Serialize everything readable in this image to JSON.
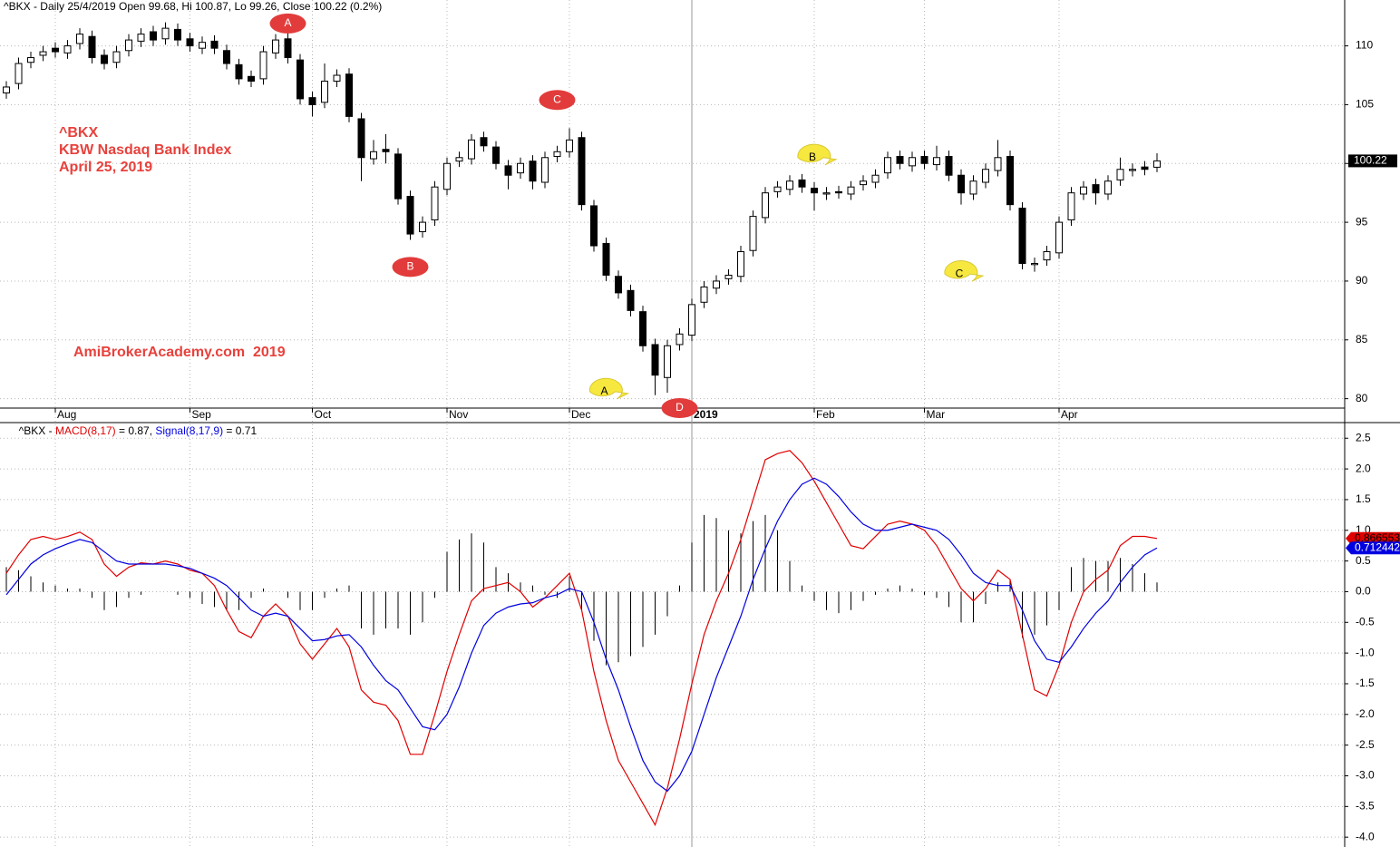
{
  "chart_data": [
    {
      "type": "candlestick",
      "title": "^BKX - Daily 25/4/2019 Open 99.68, Hi 100.87, Lo 99.26, Close 100.22 (0.2%)",
      "notes": [
        "^BKX",
        "KBW Nasdaq Bank Index",
        "April 25, 2019"
      ],
      "watermark": "AmiBrokerAcademy.com  2019",
      "categories": [
        null,
        null,
        null,
        null,
        "Aug",
        null,
        null,
        null,
        null,
        null,
        null,
        null,
        null,
        null,
        null,
        "Sep",
        null,
        null,
        null,
        null,
        null,
        null,
        null,
        null,
        null,
        "Oct",
        null,
        null,
        null,
        null,
        null,
        null,
        null,
        null,
        null,
        null,
        "Nov",
        null,
        null,
        null,
        null,
        null,
        null,
        null,
        null,
        null,
        "Dec",
        null,
        null,
        null,
        null,
        null,
        null,
        null,
        null,
        null,
        "2019",
        null,
        null,
        null,
        null,
        null,
        null,
        null,
        null,
        null,
        "Feb",
        null,
        null,
        null,
        null,
        null,
        null,
        null,
        null,
        "Mar",
        null,
        null,
        null,
        null,
        null,
        null,
        null,
        null,
        null,
        null,
        "Apr",
        null,
        null,
        null,
        null,
        null,
        null,
        null,
        null
      ],
      "year_category": "2019",
      "open": [
        106,
        106.8,
        108.6,
        109.2,
        109.8,
        109.4,
        110.2,
        110.8,
        109.2,
        108.6,
        109.6,
        110.4,
        111.2,
        110.6,
        111.4,
        110.6,
        109.8,
        110.4,
        109.6,
        108.4,
        107.4,
        107.2,
        109.4,
        110.6,
        108.8,
        105.6,
        105.2,
        107,
        107.6,
        103.8,
        100.4,
        101.2,
        100.8,
        97.2,
        94.2,
        95.2,
        97.8,
        100.2,
        100.4,
        102.2,
        101.4,
        99.8,
        99.2,
        100.2,
        98.4,
        100.6,
        101,
        102.2,
        96.4,
        93.2,
        90.4,
        89.2,
        87.4,
        84.6,
        81.8,
        84.6,
        85.4,
        88.2,
        89.4,
        90.2,
        90.4,
        92.6,
        95.4,
        97.6,
        97.8,
        98.6,
        97.9,
        97.4,
        97.6,
        97.4,
        98.2,
        98.4,
        99.2,
        100.6,
        99.8,
        100.6,
        99.9,
        100.6,
        99,
        97.4,
        98.4,
        99.4,
        100.6,
        96.2,
        91.4,
        91.8,
        92.4,
        95.2,
        97.4,
        98.2,
        97.4,
        98.6,
        99.4,
        99.7,
        99.68
      ],
      "high": [
        107,
        109,
        109.5,
        110,
        110.3,
        110.5,
        111.5,
        111.3,
        109.7,
        110,
        111,
        111.5,
        111.7,
        112,
        111.9,
        111.1,
        110.8,
        110.9,
        110.1,
        108.9,
        107.9,
        110,
        111,
        111.1,
        109.3,
        106.1,
        108.5,
        108,
        108.1,
        104.3,
        102,
        102.5,
        101.3,
        97.7,
        95.5,
        98.5,
        100.5,
        101,
        102.5,
        102.7,
        101.9,
        100.3,
        100.5,
        100.7,
        101,
        101.5,
        103,
        102.7,
        96.9,
        93.7,
        90.9,
        89.7,
        87.9,
        85.1,
        85,
        86,
        88.5,
        90,
        90.5,
        91,
        93,
        96,
        98,
        98.5,
        99,
        99.1,
        98.4,
        98,
        98.1,
        98.5,
        99,
        99.5,
        101,
        101.1,
        101,
        101.1,
        101.5,
        101.1,
        99.5,
        99,
        100,
        102,
        101.1,
        96.7,
        92,
        93,
        95.5,
        98,
        98.5,
        98.7,
        99,
        100.5,
        100,
        100.2,
        100.87
      ],
      "low": [
        105.5,
        106.3,
        108.1,
        108.7,
        109,
        108.9,
        109.7,
        108.5,
        108,
        108.1,
        109.1,
        109.9,
        110,
        110.1,
        110,
        109.5,
        109.3,
        109.3,
        108,
        106.7,
        106.5,
        106.7,
        108.9,
        108.5,
        105,
        104,
        104.7,
        106.5,
        103.5,
        98.5,
        99.9,
        100,
        96.5,
        93.5,
        93.7,
        94.7,
        97.3,
        99.7,
        99.9,
        101,
        99.5,
        97.8,
        98.7,
        97.8,
        97.9,
        100.1,
        100.5,
        96,
        92.5,
        90,
        88.5,
        87,
        84,
        80.3,
        80.5,
        84.1,
        84.9,
        87.7,
        88.9,
        89.7,
        89.9,
        92.1,
        94.9,
        97.1,
        97.3,
        97.5,
        96,
        96.9,
        97,
        96.9,
        97.7,
        97.9,
        98.7,
        99.5,
        99.3,
        99.5,
        99.4,
        98.5,
        96.5,
        96.9,
        97.9,
        98.9,
        96,
        91,
        90.8,
        91.3,
        91.9,
        94.7,
        96.9,
        96.5,
        96.9,
        98.1,
        98.9,
        99,
        99.26
      ],
      "close": [
        106.5,
        108.5,
        109,
        109.5,
        109.5,
        110,
        111,
        109,
        108.5,
        109.5,
        110.5,
        111,
        110.5,
        111.5,
        110.5,
        110,
        110.3,
        109.8,
        108.5,
        107.2,
        107,
        109.5,
        110.5,
        109,
        105.5,
        105,
        107,
        107.5,
        104,
        100.5,
        101,
        101,
        97,
        94,
        95,
        98,
        100,
        100.5,
        102,
        101.5,
        100,
        99,
        100,
        98.5,
        100.5,
        101,
        102,
        96.5,
        93,
        90.5,
        89,
        87.5,
        84.5,
        82,
        84.5,
        85.5,
        88,
        89.5,
        90,
        90.5,
        92.5,
        95.5,
        97.5,
        98,
        98.5,
        98,
        97.5,
        97.5,
        97.5,
        98,
        98.5,
        99,
        100.5,
        100,
        100.5,
        100,
        100.5,
        99,
        97.5,
        98.5,
        99.5,
        100.5,
        96.5,
        91.5,
        91.5,
        92.5,
        95,
        97.5,
        98,
        97.5,
        98.5,
        99.5,
        99.5,
        99.5,
        100.22
      ],
      "up_color": "#ffffff",
      "down_color": "#000000",
      "ylim": [
        79.2,
        113.9
      ],
      "yticks": [
        80,
        85,
        90,
        95,
        100,
        105,
        110
      ],
      "grid": true,
      "annotations": [
        {
          "text": "A",
          "color": "#e23b3b",
          "shape": "bubble",
          "x": 23,
          "y": 111.9
        },
        {
          "text": "B",
          "color": "#e23b3b",
          "shape": "bubble",
          "x": 33,
          "y": 91.2
        },
        {
          "text": "C",
          "color": "#e23b3b",
          "shape": "bubble",
          "x": 45,
          "y": 105.4
        },
        {
          "text": "D",
          "color": "#e23b3b",
          "shape": "bubble",
          "x": 55,
          "y": 79.2
        },
        {
          "text": "A",
          "color": "#f7e840",
          "shape": "callout",
          "x": 49,
          "y": 80.6
        },
        {
          "text": "B",
          "color": "#f7e840",
          "shape": "callout",
          "x": 66,
          "y": 100.5
        },
        {
          "text": "C",
          "color": "#f7e840",
          "shape": "callout",
          "x": 78,
          "y": 90.6
        }
      ]
    },
    {
      "type": "macd",
      "header_prefix": "^BKX - ",
      "header_macd": " = 0.87, ",
      "header_signal": " = 0.71",
      "series": [
        {
          "name": "MACD(8,17)",
          "color": "#e00000",
          "values": [
            0.3,
            0.6,
            0.85,
            0.9,
            0.85,
            0.9,
            0.97,
            0.85,
            0.45,
            0.25,
            0.4,
            0.47,
            0.45,
            0.5,
            0.45,
            0.35,
            0.3,
            0.1,
            -0.3,
            -0.65,
            -0.75,
            -0.4,
            -0.2,
            -0.4,
            -0.85,
            -1.1,
            -0.85,
            -0.6,
            -0.9,
            -1.6,
            -1.8,
            -1.85,
            -2.1,
            -2.65,
            -2.65,
            -2.0,
            -1.3,
            -0.7,
            -0.15,
            0.05,
            0.1,
            0.15,
            0.0,
            -0.25,
            -0.1,
            0.1,
            0.3,
            -0.3,
            -1.3,
            -2.1,
            -2.75,
            -3.1,
            -3.45,
            -3.8,
            -3.2,
            -2.4,
            -1.5,
            -0.7,
            -0.15,
            0.3,
            0.85,
            1.5,
            2.15,
            2.25,
            2.3,
            2.1,
            1.8,
            1.45,
            1.1,
            0.75,
            0.7,
            0.9,
            1.1,
            1.15,
            1.1,
            1.0,
            0.75,
            0.4,
            0.05,
            -0.15,
            0.05,
            0.35,
            0.2,
            -0.7,
            -1.6,
            -1.7,
            -1.2,
            -0.5,
            0.0,
            0.2,
            0.35,
            0.75,
            0.9,
            0.9,
            0.866553
          ],
          "text_color": "#000000"
        },
        {
          "name": "Signal(8,17,9)",
          "color": "#0000e0",
          "values": [
            -0.05,
            0.2,
            0.45,
            0.6,
            0.7,
            0.78,
            0.85,
            0.8,
            0.65,
            0.5,
            0.45,
            0.45,
            0.45,
            0.45,
            0.42,
            0.38,
            0.3,
            0.22,
            0.1,
            -0.1,
            -0.3,
            -0.4,
            -0.35,
            -0.4,
            -0.6,
            -0.8,
            -0.78,
            -0.72,
            -0.7,
            -0.9,
            -1.2,
            -1.45,
            -1.6,
            -1.9,
            -2.2,
            -2.25,
            -2.0,
            -1.55,
            -1.0,
            -0.55,
            -0.35,
            -0.25,
            -0.2,
            -0.18,
            -0.1,
            -0.05,
            0.05,
            0.0,
            -0.5,
            -1.1,
            -1.6,
            -2.2,
            -2.75,
            -3.1,
            -3.25,
            -3.0,
            -2.6,
            -2.0,
            -1.4,
            -0.9,
            -0.4,
            0.2,
            0.7,
            1.15,
            1.5,
            1.75,
            1.85,
            1.75,
            1.55,
            1.3,
            1.1,
            1.0,
            1.0,
            1.05,
            1.1,
            1.05,
            1.0,
            0.85,
            0.6,
            0.3,
            0.15,
            0.1,
            0.1,
            -0.3,
            -0.8,
            -1.1,
            -1.15,
            -0.9,
            -0.6,
            -0.35,
            -0.15,
            0.15,
            0.4,
            0.6,
            0.712442
          ],
          "text_color": "#ffffff"
        }
      ],
      "histogram": {
        "color": "#000000",
        "values": [
          0.4,
          0.35,
          0.25,
          0.15,
          0.1,
          0.05,
          0.05,
          -0.1,
          -0.3,
          -0.25,
          -0.1,
          -0.05,
          0.0,
          0.0,
          -0.05,
          -0.1,
          -0.2,
          -0.25,
          -0.3,
          -0.3,
          -0.1,
          0.05,
          0.0,
          -0.1,
          -0.3,
          -0.3,
          -0.1,
          0.05,
          0.1,
          -0.6,
          -0.7,
          -0.6,
          -0.6,
          -0.7,
          -0.5,
          -0.1,
          0.65,
          0.85,
          0.95,
          0.8,
          0.4,
          0.3,
          0.15,
          0.1,
          -0.05,
          -0.1,
          0.25,
          -0.3,
          -0.8,
          -1.2,
          -1.15,
          -1.05,
          -0.9,
          -0.7,
          -0.4,
          0.1,
          0.8,
          1.25,
          1.2,
          1.0,
          0.95,
          1.15,
          1.25,
          1.0,
          0.5,
          0.1,
          -0.15,
          -0.3,
          -0.35,
          -0.3,
          -0.15,
          -0.05,
          0.05,
          0.1,
          0.05,
          -0.05,
          -0.1,
          -0.25,
          -0.5,
          -0.5,
          -0.2,
          0.15,
          0.2,
          -0.75,
          -0.7,
          -0.55,
          -0.3,
          0.4,
          0.55,
          0.5,
          0.5,
          0.55,
          0.45,
          0.3,
          0.15
        ]
      },
      "ylim": [
        -4.16,
        2.74
      ],
      "yticks": [
        2.5,
        {
          "value": 2,
          "label": "2.0"
        },
        1.5,
        {
          "value": 1,
          "label": "1.0"
        },
        0.5,
        {
          "value": 0,
          "label": "0.0"
        },
        -0.5,
        {
          "value": -1,
          "label": "-1.0"
        },
        -1.5,
        {
          "value": -2,
          "label": "-2.0"
        },
        -2.5,
        {
          "value": -3,
          "label": "-3.0"
        },
        -3.5,
        {
          "value": -4,
          "label": "-4.0"
        }
      ],
      "grid": true
    }
  ]
}
